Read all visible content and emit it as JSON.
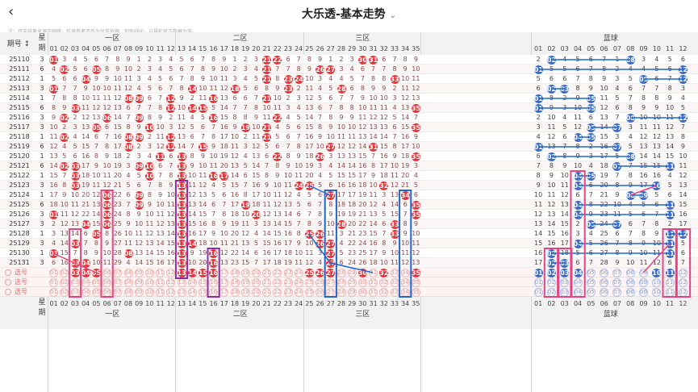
{
  "header": {
    "back_icon": "chevron-left-icon",
    "title": "大乐透-基本走势",
    "dropdown_icon": "chevron-down-icon"
  },
  "note": "注：开奖结果来源于网络，仅供参考不作为兑奖依据。如有疑问，以福彩官方数据为准。",
  "zones": {
    "front1": "一区",
    "front2": "二区",
    "front3": "三区",
    "back": "蓝球"
  },
  "row_header": {
    "issue": "期号",
    "week_top": "星",
    "week_bottom": "期"
  },
  "front_numbers": [
    "01",
    "02",
    "03",
    "04",
    "05",
    "06",
    "07",
    "08",
    "09",
    "10",
    "11",
    "12",
    "13",
    "14",
    "15",
    "16",
    "17",
    "18",
    "19",
    "20",
    "21",
    "22",
    "23",
    "24",
    "25",
    "26",
    "27",
    "28",
    "29",
    "30",
    "31",
    "32",
    "33",
    "34",
    "35"
  ],
  "back_numbers": [
    "01",
    "02",
    "03",
    "04",
    "05",
    "06",
    "07",
    "08",
    "09",
    "10",
    "11",
    "12"
  ],
  "draws": [
    {
      "issue": "25110",
      "week": "3",
      "front": [
        1,
        21,
        22,
        30,
        31
      ],
      "back": [
        2,
        8
      ]
    },
    {
      "issue": "25111",
      "week": "6",
      "front": [
        2,
        5,
        21,
        26,
        27
      ],
      "back": [
        1,
        12
      ]
    },
    {
      "issue": "25112",
      "week": "1",
      "front": [
        4,
        21,
        23,
        24,
        33
      ],
      "back": [
        9,
        12
      ]
    },
    {
      "issue": "25113",
      "week": "3",
      "front": [
        1,
        14,
        18,
        23,
        28
      ],
      "back": [
        2,
        3
      ]
    },
    {
      "issue": "25114",
      "week": "1",
      "front": [
        8,
        9,
        12,
        16,
        21
      ],
      "back": [
        1,
        5
      ]
    },
    {
      "issue": "25115",
      "week": "6",
      "front": [
        3,
        12,
        14,
        15,
        35
      ],
      "back": [
        1,
        5
      ]
    },
    {
      "issue": "25116",
      "week": "3",
      "front": [
        2,
        6,
        9,
        16,
        22
      ],
      "back": [
        8,
        12
      ]
    },
    {
      "issue": "25117",
      "week": "3",
      "front": [
        5,
        10,
        19,
        21,
        35
      ],
      "back": [
        5,
        7
      ]
    },
    {
      "issue": "25118",
      "week": "1",
      "front": [
        2,
        8,
        9,
        12,
        21
      ],
      "back": [
        4,
        5
      ]
    },
    {
      "issue": "25119",
      "week": "6",
      "front": [
        8,
        12,
        15,
        27,
        31
      ],
      "back": [
        1,
        7
      ]
    },
    {
      "issue": "25120",
      "week": "1",
      "front": [
        11,
        13,
        22,
        26,
        35
      ],
      "back": [
        2,
        8
      ]
    },
    {
      "issue": "25121",
      "week": "6",
      "front": [
        2,
        3,
        9,
        10,
        13
      ],
      "back": [
        7,
        11
      ]
    },
    {
      "issue": "25122",
      "week": "1",
      "front": [
        3,
        10,
        13,
        16,
        17
      ],
      "back": [
        4,
        5
      ]
    },
    {
      "issue": "25123",
      "week": "3",
      "front": [
        3,
        13,
        24,
        25,
        32
      ],
      "back": [
        4,
        10
      ]
    },
    {
      "issue": "25124",
      "week": "1",
      "front": [
        6,
        9,
        13,
        27,
        34
      ],
      "back": [
        8,
        9
      ]
    },
    {
      "issue": "25125",
      "week": "6",
      "front": [
        6,
        9,
        13,
        19,
        35
      ],
      "back": [
        4,
        11
      ]
    },
    {
      "issue": "25126",
      "week": "3",
      "front": [
        1,
        6,
        13,
        20,
        35
      ],
      "back": [
        4,
        11
      ]
    },
    {
      "issue": "25127",
      "week": "3",
      "front": [
        4,
        6,
        13,
        28,
        33
      ],
      "back": [
        5,
        7
      ]
    },
    {
      "issue": "25128",
      "week": "1",
      "front": [
        5,
        13,
        25,
        26,
        33
      ],
      "back": [
        11,
        12
      ]
    },
    {
      "issue": "25129",
      "week": "3",
      "front": [
        3,
        13,
        14,
        26,
        27
      ],
      "back": [
        4,
        11
      ]
    },
    {
      "issue": "25130",
      "week": "1",
      "front": [
        1,
        8,
        13,
        16,
        27
      ],
      "back": [
        2,
        11
      ]
    },
    {
      "issue": "25131",
      "week": "3",
      "front": [
        3,
        4,
        13,
        16,
        27
      ],
      "back": [
        2,
        3
      ]
    }
  ],
  "pick_rows": [
    {
      "label": "选号",
      "front_selected": [
        3,
        4,
        5,
        13,
        14,
        15,
        16,
        25,
        26,
        27,
        30,
        32,
        35
      ],
      "back_selected": [
        1,
        2,
        3,
        4,
        10,
        11
      ]
    },
    {
      "label": "选号",
      "front_selected": [],
      "back_selected": []
    },
    {
      "label": "选号",
      "front_selected": [],
      "back_selected": []
    }
  ],
  "colors": {
    "red_ball": "#e8363c",
    "blue_ball": "#3a6ccf",
    "pink_line": "#e8437e",
    "blue_line": "#1e66d0",
    "purple_box": "#8e2ca8"
  }
}
